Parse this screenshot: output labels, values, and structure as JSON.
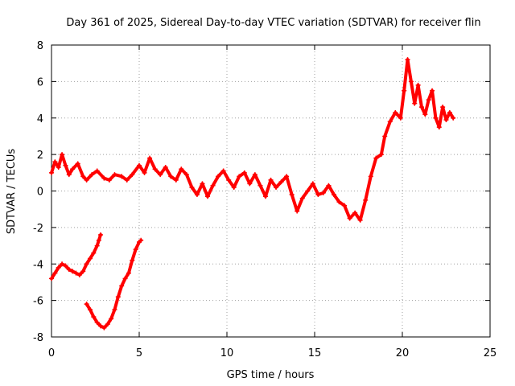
{
  "chart_data": {
    "type": "scatter",
    "title": "Day 361 of 2025, Sidereal Day-to-day VTEC variation (SDTVAR) for receiver flin",
    "xlabel": "GPS time / hours",
    "ylabel": "SDTVAR / TECUs",
    "xlim": [
      0,
      25
    ],
    "ylim": [
      -8,
      8
    ],
    "x_ticks": [
      0,
      5,
      10,
      15,
      20,
      25
    ],
    "y_ticks": [
      -8,
      -6,
      -4,
      -2,
      0,
      2,
      4,
      6,
      8
    ],
    "grid": true,
    "marker": "plus",
    "series": [
      {
        "name": "main",
        "color": "#ff0000",
        "x": [
          0.0,
          0.2,
          0.4,
          0.6,
          0.8,
          1.0,
          1.2,
          1.5,
          1.8,
          2.0,
          2.3,
          2.6,
          3.0,
          3.3,
          3.6,
          4.0,
          4.3,
          4.6,
          5.0,
          5.3,
          5.6,
          5.9,
          6.2,
          6.5,
          6.8,
          7.1,
          7.4,
          7.7,
          8.0,
          8.3,
          8.6,
          8.9,
          9.2,
          9.5,
          9.8,
          10.1,
          10.4,
          10.7,
          11.0,
          11.3,
          11.6,
          11.9,
          12.2,
          12.5,
          12.8,
          13.1,
          13.4,
          13.7,
          14.0,
          14.3,
          14.6,
          14.9,
          15.2,
          15.5,
          15.8,
          16.1,
          16.4,
          16.7,
          17.0,
          17.3,
          17.6,
          17.9,
          18.2,
          18.5,
          18.8,
          19.0,
          19.3,
          19.6,
          19.9,
          20.1,
          20.3,
          20.5,
          20.7,
          20.9,
          21.1,
          21.3,
          21.5,
          21.7,
          21.9,
          22.1,
          22.3,
          22.5,
          22.7,
          22.9
        ],
        "y": [
          1.0,
          1.6,
          1.3,
          2.0,
          1.4,
          0.9,
          1.2,
          1.5,
          0.8,
          0.6,
          0.9,
          1.1,
          0.7,
          0.6,
          0.9,
          0.8,
          0.6,
          0.9,
          1.4,
          1.0,
          1.8,
          1.2,
          0.9,
          1.3,
          0.8,
          0.6,
          1.2,
          0.9,
          0.2,
          -0.2,
          0.4,
          -0.3,
          0.3,
          0.8,
          1.1,
          0.6,
          0.2,
          0.8,
          1.0,
          0.4,
          0.9,
          0.3,
          -0.3,
          0.6,
          0.2,
          0.5,
          0.8,
          -0.2,
          -1.1,
          -0.4,
          0.0,
          0.4,
          -0.2,
          -0.1,
          0.3,
          -0.2,
          -0.6,
          -0.8,
          -1.5,
          -1.2,
          -1.6,
          -0.5,
          0.8,
          1.8,
          2.0,
          3.0,
          3.8,
          4.3,
          4.0,
          5.5,
          7.2,
          6.0,
          4.8,
          5.8,
          4.6,
          4.2,
          5.0,
          5.5,
          4.0,
          3.5,
          4.6,
          3.9,
          4.3,
          4.0
        ]
      },
      {
        "name": "lower-left",
        "color": "#ff0000",
        "x": [
          0.0,
          0.2,
          0.4,
          0.6,
          0.8,
          1.0,
          1.2,
          1.4,
          1.6,
          1.8,
          2.0,
          2.2,
          2.4,
          2.6,
          2.7,
          2.8
        ],
        "y": [
          -4.8,
          -4.5,
          -4.2,
          -4.0,
          -4.1,
          -4.3,
          -4.4,
          -4.5,
          -4.6,
          -4.4,
          -4.0,
          -3.7,
          -3.4,
          -3.0,
          -2.7,
          -2.4
        ]
      },
      {
        "name": "lower-trough",
        "color": "#ff0000",
        "x": [
          2.0,
          2.2,
          2.4,
          2.6,
          2.8,
          3.0,
          3.2,
          3.4,
          3.6,
          3.8,
          4.0,
          4.2,
          4.4,
          4.6,
          4.8,
          5.0,
          5.1
        ],
        "y": [
          -6.2,
          -6.5,
          -6.9,
          -7.2,
          -7.4,
          -7.5,
          -7.3,
          -7.0,
          -6.5,
          -5.8,
          -5.2,
          -4.8,
          -4.5,
          -3.8,
          -3.2,
          -2.8,
          -2.7
        ]
      }
    ]
  }
}
